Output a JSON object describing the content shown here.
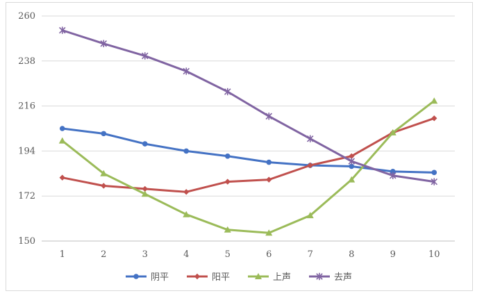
{
  "chart_data": {
    "type": "line",
    "categories": [
      "1",
      "2",
      "3",
      "4",
      "5",
      "6",
      "7",
      "8",
      "9",
      "10"
    ],
    "ylim": [
      150,
      260
    ],
    "yticks": [
      150,
      172,
      194,
      216,
      238,
      260
    ],
    "grid": true,
    "legend_position": "bottom",
    "series": [
      {
        "name": "阴平",
        "color": "#4472c4",
        "marker": "circle",
        "values": [
          205,
          202.5,
          197.5,
          194,
          191.5,
          188.5,
          187,
          186.5,
          184,
          183.5
        ]
      },
      {
        "name": "阳平",
        "color": "#c0504d",
        "marker": "diamond",
        "values": [
          181,
          177,
          175.5,
          174,
          179,
          180,
          187,
          191.5,
          203,
          210
        ]
      },
      {
        "name": "上声",
        "color": "#9bbb59",
        "marker": "triangle",
        "values": [
          199,
          183,
          173,
          163,
          155.5,
          154,
          162.5,
          180,
          203,
          218.5
        ]
      },
      {
        "name": "去声",
        "color": "#8064a2",
        "marker": "star",
        "values": [
          253,
          246.5,
          240.5,
          233,
          223,
          211,
          200,
          189,
          182,
          179
        ]
      }
    ]
  }
}
